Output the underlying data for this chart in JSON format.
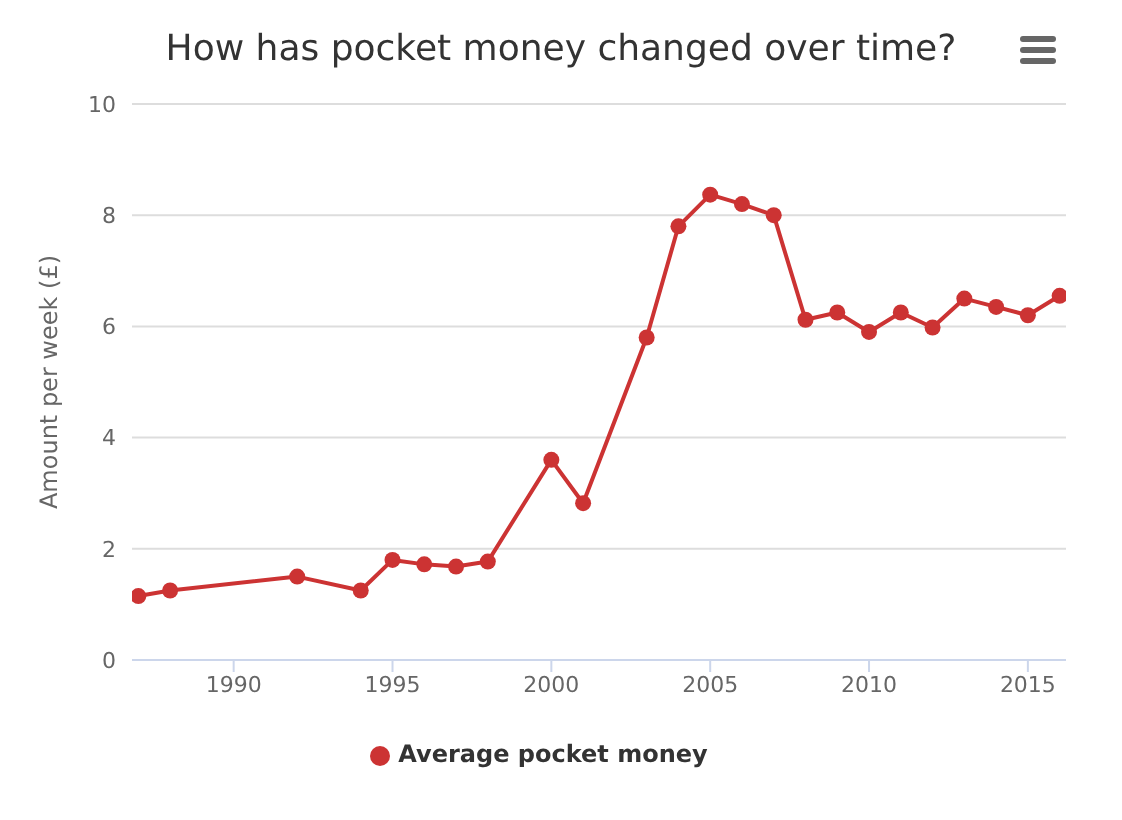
{
  "chart_data": {
    "type": "line",
    "title": "How has pocket money changed over time?",
    "ylabel": "Amount per week (£)",
    "x": [
      1987,
      1988,
      1992,
      1994,
      1995,
      1996,
      1997,
      1998,
      2000,
      2001,
      2003,
      2004,
      2005,
      2006,
      2007,
      2008,
      2009,
      2010,
      2011,
      2012,
      2013,
      2014,
      2015,
      2016
    ],
    "series": [
      {
        "name": "Average pocket money",
        "color": "#cc3333",
        "values": [
          1.15,
          1.25,
          1.5,
          1.25,
          1.8,
          1.72,
          1.68,
          1.77,
          3.6,
          2.82,
          5.8,
          7.8,
          8.37,
          8.2,
          8.0,
          6.12,
          6.25,
          5.9,
          6.25,
          5.98,
          6.5,
          6.35,
          6.2,
          6.55
        ]
      }
    ],
    "xlim": [
      1986.8,
      2016.2
    ],
    "xticks": [
      1990,
      1995,
      2000,
      2005,
      2010,
      2015
    ],
    "ylim": [
      0,
      10
    ],
    "yticks": [
      0,
      2,
      4,
      6,
      8,
      10
    ],
    "grid": "y",
    "legend": "bottom",
    "marker": "circle",
    "line_style": "solid"
  }
}
